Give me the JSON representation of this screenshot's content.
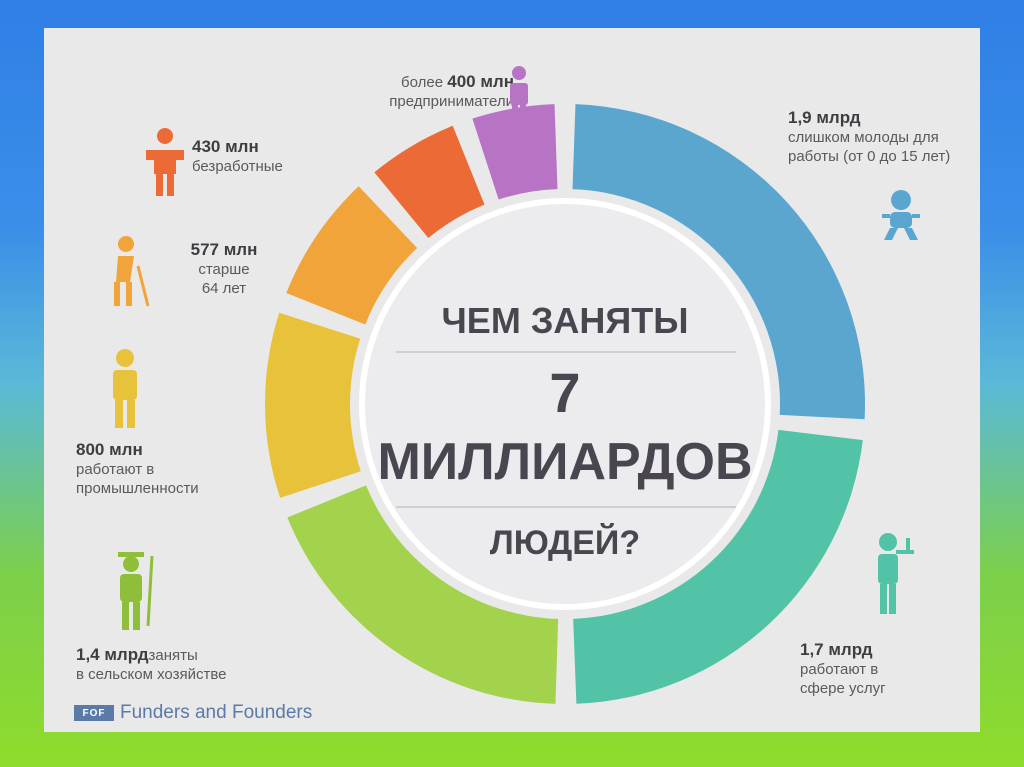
{
  "chart_data": {
    "type": "pie",
    "title_lines": [
      "ЧЕМ ЗАНЯТЫ",
      "7",
      "МИЛЛИАРДОВ",
      "ЛЮДЕЙ?"
    ],
    "slices": [
      {
        "value_label": "1,9 млрд",
        "text": [
          "слишком молоды для",
          "работы (от 0 до 15 лет)"
        ],
        "color": "#5aa6cf"
      },
      {
        "value_label": "1,7 млрд",
        "text": [
          "работают в",
          "сфере услуг"
        ],
        "color": "#52c3a6"
      },
      {
        "value_label": "1,4 млрд",
        "text": [
          "заняты",
          "в сельском хозяйстве"
        ],
        "color": "#a3d24c"
      },
      {
        "value_label": "800 млн",
        "text": [
          "работают в",
          "промышленности"
        ],
        "color": "#e8c23a"
      },
      {
        "value_label": "577 млн",
        "text": [
          "старше",
          "64 лет"
        ],
        "color": "#f0a43a"
      },
      {
        "value_label": "430 млн",
        "text": [
          "безработные"
        ],
        "color": "#ec6a35"
      },
      {
        "value_label": "400 млн",
        "prefix": "более",
        "text": [
          "предприниматели"
        ],
        "color": "#b774c4"
      }
    ]
  },
  "icons": [
    "baby-icon",
    "waiter-icon",
    "farmer-icon",
    "worker-icon",
    "elder-icon",
    "unemployed-icon",
    "businessman-icon"
  ],
  "footer": {
    "logo_mark": "FOF",
    "brand": "Funders and Founders"
  }
}
